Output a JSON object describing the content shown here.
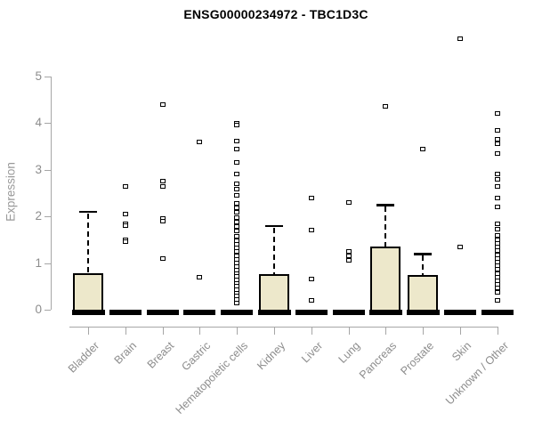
{
  "chart_data": {
    "type": "box",
    "title": "ENSG00000234972 - TBC1D3C",
    "ylabel": "Expression",
    "xlabel": "",
    "ylim": [
      0,
      5.9
    ],
    "y_ticks": [
      0,
      1,
      2,
      3,
      4,
      5
    ],
    "grid": false,
    "legend": false,
    "colors": {
      "box_fill": "#EDE8CB",
      "box_border": "#000000",
      "median": "#000000",
      "axis": "#A6A6A6",
      "tick_label": "#8C8C8C",
      "title": "#000000",
      "outlier_border": "#000000"
    },
    "groups": [
      {
        "label": "Bladder",
        "box": {
          "q1": 0,
          "median": 0.03,
          "q3": 0.78,
          "whisker_low": 0,
          "whisker_high": 2.1
        },
        "outliers": []
      },
      {
        "label": "Brain",
        "box": null,
        "outliers": [
          2.65,
          2.05,
          1.85,
          1.8,
          1.5,
          1.45
        ]
      },
      {
        "label": "Breast",
        "box": null,
        "outliers": [
          4.4,
          2.75,
          2.65,
          1.95,
          1.9,
          1.1
        ]
      },
      {
        "label": "Gastric",
        "box": null,
        "outliers": [
          3.6,
          0.7
        ]
      },
      {
        "label": "Hematopoietic cells",
        "box": null,
        "outliers": [
          4.0,
          3.95,
          3.62,
          3.45,
          3.15,
          2.9,
          2.7,
          2.58,
          2.45,
          2.28,
          2.18,
          2.08,
          1.98,
          1.88,
          1.78,
          1.68,
          1.58,
          1.48,
          1.4,
          1.32,
          1.24,
          1.16,
          1.08,
          1.0,
          0.92,
          0.85,
          0.78,
          0.71,
          0.64,
          0.57,
          0.5,
          0.43,
          0.36,
          0.29,
          0.22,
          0.15
        ]
      },
      {
        "label": "Kidney",
        "box": {
          "q1": 0,
          "median": 0.03,
          "q3": 0.76,
          "whisker_low": 0,
          "whisker_high": 1.8
        },
        "outliers": []
      },
      {
        "label": "Liver",
        "box": null,
        "outliers": [
          2.4,
          1.7,
          0.65,
          0.2
        ]
      },
      {
        "label": "Lung",
        "box": null,
        "outliers": [
          2.3,
          1.25,
          1.15,
          1.05
        ]
      },
      {
        "label": "Pancreas",
        "box": {
          "q1": 0,
          "median": 0.03,
          "q3": 1.35,
          "whisker_low": 0,
          "whisker_high": 2.25
        },
        "outliers": [
          4.35
        ]
      },
      {
        "label": "Prostate",
        "box": {
          "q1": 0,
          "median": 0.03,
          "q3": 0.74,
          "whisker_low": 0,
          "whisker_high": 1.2
        },
        "outliers": [
          3.45
        ]
      },
      {
        "label": "Skin",
        "box": null,
        "outliers": [
          5.8,
          1.35
        ]
      },
      {
        "label": "Unknown / Other",
        "box": null,
        "outliers": [
          4.2,
          3.85,
          3.65,
          3.55,
          3.35,
          2.9,
          2.8,
          2.65,
          2.4,
          2.2,
          1.85,
          1.72,
          1.6,
          1.5,
          1.42,
          1.34,
          1.26,
          1.18,
          1.1,
          1.02,
          0.94,
          0.86,
          0.78,
          0.7,
          0.62,
          0.54,
          0.46,
          0.38,
          0.2
        ]
      }
    ]
  }
}
